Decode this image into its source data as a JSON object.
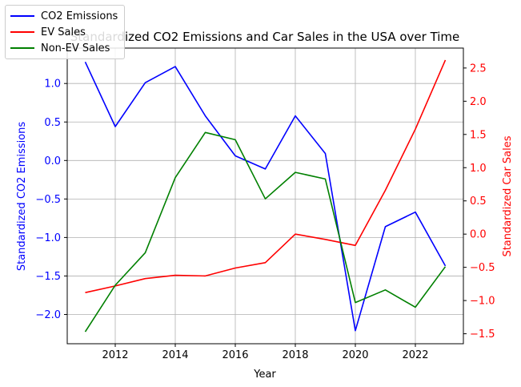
{
  "chart_data": {
    "type": "line",
    "title": "Standardized CO2 Emissions and Car Sales in the USA over Time",
    "xlabel": "Year",
    "ylabel_left": "Standardized CO2 Emissions",
    "ylabel_right": "Standardized Car Sales",
    "x": [
      2011,
      2012,
      2013,
      2014,
      2015,
      2016,
      2017,
      2018,
      2019,
      2020,
      2021,
      2022,
      2023
    ],
    "xlim": [
      2010.4,
      2023.6
    ],
    "ylim_left": [
      -2.38,
      1.46
    ],
    "ylim_right": [
      -1.65,
      2.8
    ],
    "xticks": [
      2012,
      2014,
      2016,
      2018,
      2020,
      2022
    ],
    "yticks_left": [
      1.0,
      0.5,
      0.0,
      -0.5,
      -1.0,
      -1.5,
      -2.0
    ],
    "yticks_right": [
      2.5,
      2.0,
      1.5,
      1.0,
      0.5,
      0.0,
      -0.5,
      -1.0,
      -1.5
    ],
    "xtick_labels": [
      "2012",
      "2014",
      "2016",
      "2018",
      "2020",
      "2022"
    ],
    "ytick_labels_left": [
      "1.0",
      "0.5",
      "0.0",
      "−0.5",
      "−1.0",
      "−1.5",
      "−2.0"
    ],
    "ytick_labels_right": [
      "2.5",
      "2.0",
      "1.5",
      "1.0",
      "0.5",
      "0.0",
      "−0.5",
      "−1.0",
      "−1.5"
    ],
    "grid": true,
    "legend_position": "top-left",
    "left_axis_color": "#0000ff",
    "right_axis_color": "#ff0000",
    "series": [
      {
        "name": "CO2 Emissions",
        "axis": "left",
        "color": "#0000ff",
        "values": [
          1.28,
          0.44,
          1.01,
          1.22,
          0.58,
          0.06,
          -0.11,
          0.58,
          0.09,
          -2.21,
          -0.86,
          -0.67,
          -1.37
        ]
      },
      {
        "name": "EV Sales",
        "axis": "right",
        "color": "#ff0000",
        "values": [
          -0.88,
          -0.78,
          -0.67,
          -0.62,
          -0.63,
          -0.51,
          -0.43,
          0.0,
          -0.08,
          -0.17,
          0.66,
          1.58,
          2.62
        ]
      },
      {
        "name": "Non-EV Sales",
        "axis": "right",
        "color": "#008000",
        "values": [
          -1.47,
          -0.77,
          -0.28,
          0.85,
          1.53,
          1.42,
          0.53,
          0.93,
          0.83,
          -1.03,
          -0.84,
          -1.1,
          -0.49
        ]
      }
    ]
  }
}
